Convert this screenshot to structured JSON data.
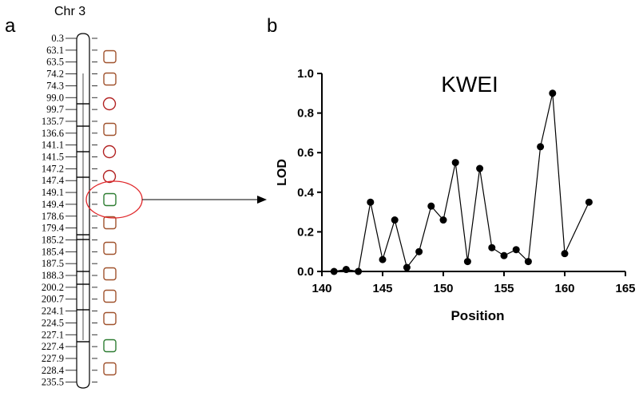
{
  "panel_a": {
    "label": "a",
    "title": "Chr 3",
    "markers": [
      "0.3",
      "63.1",
      "63.5",
      "74.2",
      "74.3",
      "99.0",
      "99.7",
      "135.7",
      "136.6",
      "141.1",
      "141.5",
      "147.2",
      "147.4",
      "149.1",
      "149.4",
      "178.6",
      "179.4",
      "185.2",
      "185.4",
      "187.5",
      "188.3",
      "200.2",
      "200.7",
      "224.1",
      "224.5",
      "227.1",
      "227.4",
      "227.9",
      "228.4",
      "235.5"
    ],
    "symbols": [
      {
        "shape": "square",
        "color": "#a0522d"
      },
      {
        "shape": "square",
        "color": "#a0522d"
      },
      {
        "shape": "circle",
        "color": "#b22222"
      },
      {
        "shape": "square",
        "color": "#a0522d"
      },
      {
        "shape": "circle",
        "color": "#b22222"
      },
      {
        "shape": "circle",
        "color": "#b22222"
      },
      {
        "shape": "square",
        "color": "#2e7d32"
      },
      {
        "shape": "square",
        "color": "#a0522d"
      },
      {
        "shape": "square",
        "color": "#a0522d"
      },
      {
        "shape": "square",
        "color": "#a0522d"
      },
      {
        "shape": "square",
        "color": "#a0522d"
      },
      {
        "shape": "square",
        "color": "#a0522d"
      },
      {
        "shape": "square",
        "color": "#2e7d32"
      },
      {
        "shape": "square",
        "color": "#a0522d"
      }
    ],
    "highlight_color": "#e0282b"
  },
  "panel_b_label": "b",
  "chart_data": {
    "type": "line",
    "title": "KWEI",
    "xlabel": "Position",
    "ylabel": "LOD",
    "xlim": [
      140,
      165
    ],
    "ylim": [
      0,
      1.0
    ],
    "xticks": [
      "140",
      "145",
      "150",
      "155",
      "160",
      "165"
    ],
    "yticks": [
      "0.0",
      "0.2",
      "0.4",
      "0.6",
      "0.8",
      "1.0"
    ],
    "x": [
      141,
      142,
      143,
      144,
      145,
      146,
      147,
      148,
      149,
      150,
      151,
      152,
      153,
      154,
      155,
      156,
      157,
      158,
      159,
      160,
      162
    ],
    "values": [
      0.0,
      0.01,
      0.0,
      0.35,
      0.06,
      0.26,
      0.02,
      0.1,
      0.33,
      0.26,
      0.55,
      0.05,
      0.52,
      0.12,
      0.08,
      0.11,
      0.05,
      0.63,
      0.9,
      0.09,
      0.35
    ],
    "grid": false,
    "marker_color": "#000000"
  }
}
